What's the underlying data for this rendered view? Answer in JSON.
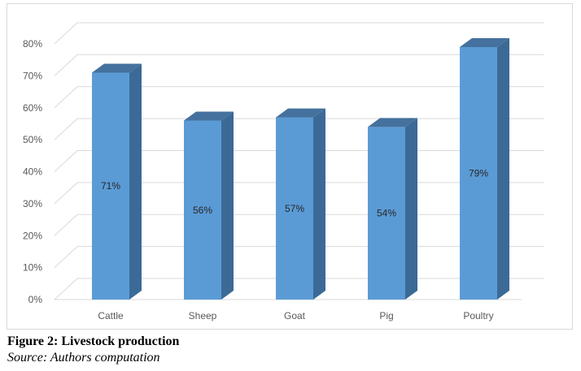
{
  "chart_data": {
    "type": "bar",
    "style": "3d-column",
    "categories": [
      "Cattle",
      "Sheep",
      "Goat",
      "Pig",
      "Poultry"
    ],
    "values": [
      71,
      56,
      57,
      54,
      79
    ],
    "data_labels": [
      "71%",
      "56%",
      "57%",
      "54%",
      "79%"
    ],
    "y_ticks": [
      "0%",
      "10%",
      "20%",
      "30%",
      "40%",
      "50%",
      "60%",
      "70%",
      "80%"
    ],
    "ylim": [
      0,
      80
    ],
    "grid": true,
    "legend": "none",
    "colors": {
      "front": "#5b9bd5",
      "side": "#3b6a96",
      "top": "#44719d",
      "grid": "#d9d9d9"
    }
  },
  "caption": {
    "title": "Figure 2: Livestock production",
    "source": "Source: Authors computation"
  }
}
